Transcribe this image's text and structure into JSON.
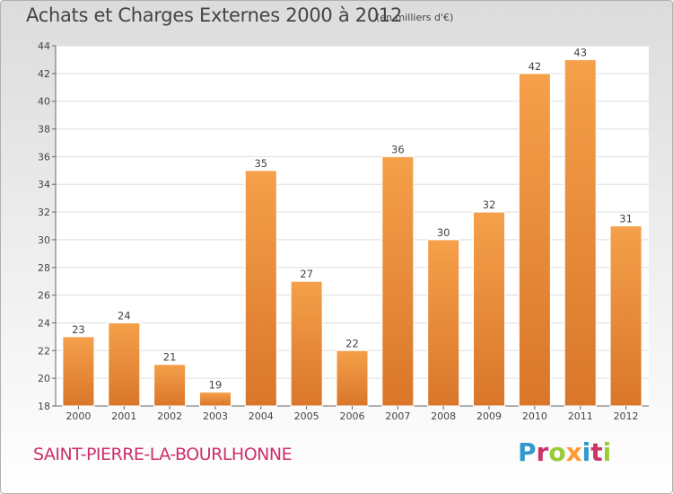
{
  "header": {
    "title": "Achats et Charges Externes 2000 à 2012",
    "unit": "(en milliers d'€)"
  },
  "footer": {
    "commune": "SAINT-PIERRE-LA-BOURLHONNE",
    "logo": "Proxiti",
    "logo_colors": [
      "#3399cc",
      "#cc3366",
      "#99cc33",
      "#ff9933",
      "#3399cc",
      "#cc3366",
      "#99cc33"
    ]
  },
  "chart_data": {
    "type": "bar",
    "title": "Achats et Charges Externes 2000 à 2012",
    "subtitle": "(en milliers d'€)",
    "categories": [
      "2000",
      "2001",
      "2002",
      "2003",
      "2004",
      "2005",
      "2006",
      "2007",
      "2008",
      "2009",
      "2010",
      "2011",
      "2012"
    ],
    "values": [
      23,
      24,
      21,
      19,
      35,
      27,
      22,
      36,
      30,
      32,
      42,
      43,
      31
    ],
    "ylim": [
      18,
      44
    ],
    "yticks": [
      18,
      20,
      22,
      24,
      26,
      28,
      30,
      32,
      34,
      36,
      38,
      40,
      42,
      44
    ],
    "grid": true,
    "bar_color_light": "#f5a04a",
    "bar_color_dark": "#d9762a",
    "grid_color": "#dddddd"
  }
}
